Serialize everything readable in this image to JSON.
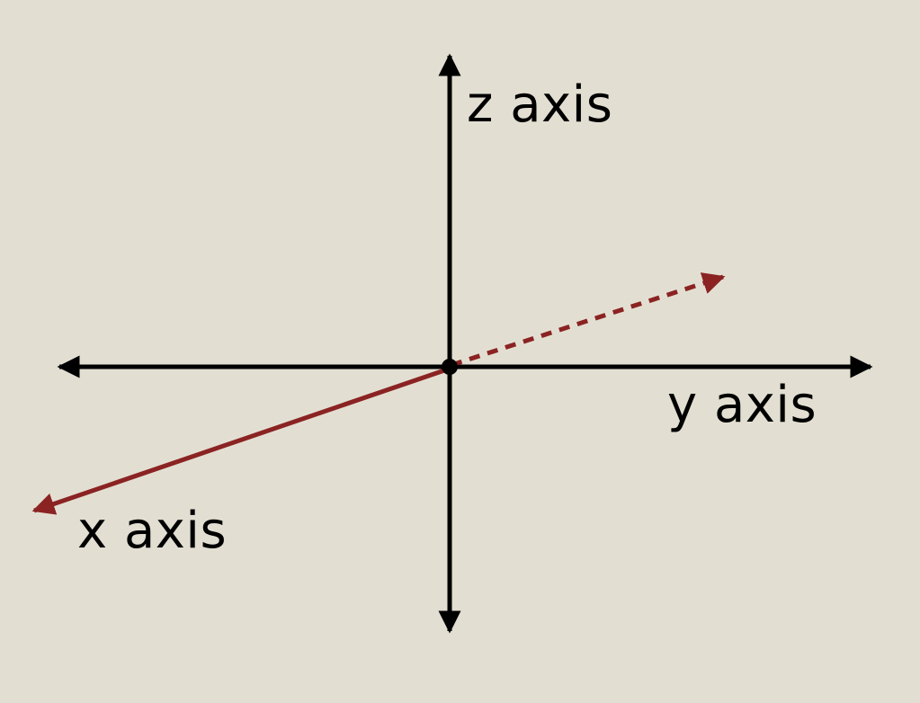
{
  "labels": {
    "z": "z axis",
    "y": "y axis",
    "x": "x axis"
  },
  "colors": {
    "background": "#e2dfd2",
    "axis": "#000000",
    "x_axis": "#8b2323"
  }
}
